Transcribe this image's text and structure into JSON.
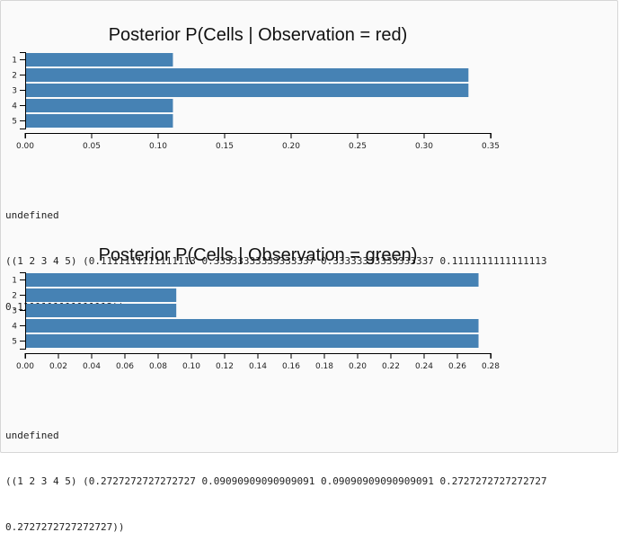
{
  "chart_data": [
    {
      "type": "bar",
      "orientation": "horizontal",
      "title": "Posterior P(Cells | Observation = red)",
      "categories": [
        "1",
        "2",
        "3",
        "4",
        "5"
      ],
      "values": [
        0.1111111111111113,
        0.33333333333333337,
        0.33333333333333337,
        0.1111111111111113,
        0.1111111111111113
      ],
      "xlim": [
        0,
        0.35
      ],
      "xticks": [
        "0.00",
        "0.05",
        "0.10",
        "0.15",
        "0.20",
        "0.25",
        "0.30",
        "0.35"
      ],
      "bar_color": "#4682b4"
    },
    {
      "type": "bar",
      "orientation": "horizontal",
      "title": "Posterior P(Cells | Observation = green)",
      "categories": [
        "1",
        "2",
        "3",
        "4",
        "5"
      ],
      "values": [
        0.2727272727272727,
        0.09090909090909091,
        0.09090909090909091,
        0.2727272727272727,
        0.2727272727272727
      ],
      "xlim": [
        0,
        0.28
      ],
      "xticks": [
        "0.00",
        "0.02",
        "0.04",
        "0.06",
        "0.08",
        "0.10",
        "0.12",
        "0.14",
        "0.16",
        "0.18",
        "0.20",
        "0.22",
        "0.24",
        "0.26",
        "0.28"
      ],
      "bar_color": "#4682b4"
    }
  ],
  "outputs": [
    {
      "undefined_label": "undefined",
      "line1": "((1 2 3 4 5) (0.1111111111111113 0.33333333333333337 0.33333333333333337 0.1111111111111113",
      "line2": "0.1111111111111113))"
    },
    {
      "undefined_label": "undefined",
      "line1": "((1 2 3 4 5) (0.2727272727272727 0.09090909090909091 0.09090909090909091 0.2727272727272727",
      "line2": "0.2727272727272727))"
    }
  ]
}
